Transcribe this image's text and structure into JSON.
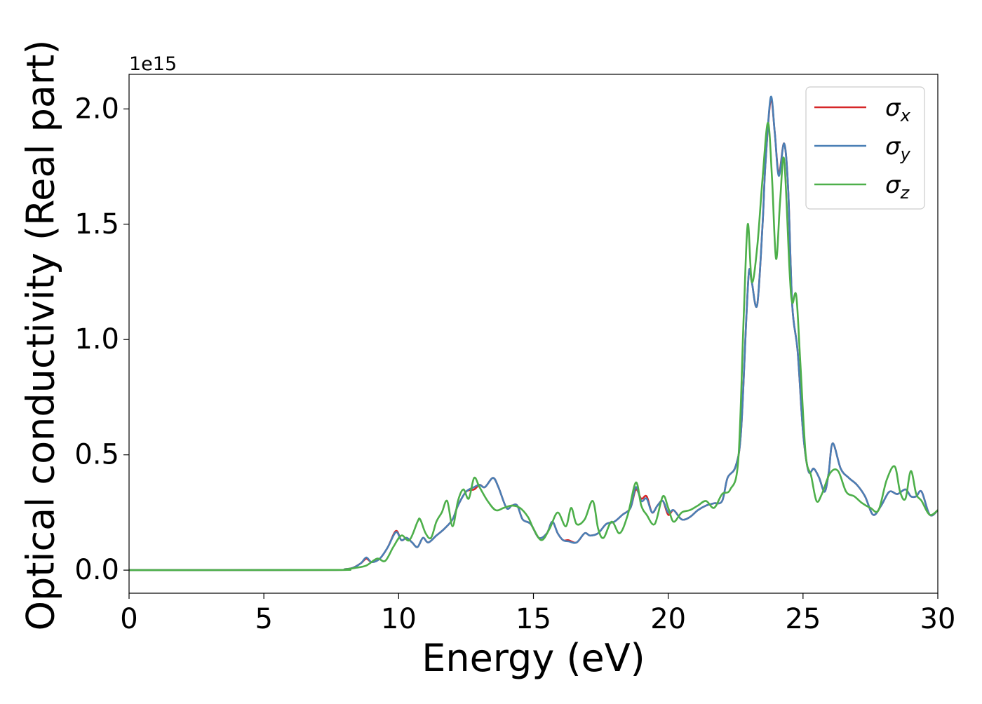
{
  "chart_data": {
    "type": "line",
    "title": "",
    "xlabel": "Energy (eV)",
    "ylabel": "Optical conductivity (Real part)",
    "y_offset_text": "1e15",
    "xlim": [
      0,
      30
    ],
    "ylim": [
      -0.1,
      2.15
    ],
    "x_ticks": [
      0,
      5,
      10,
      15,
      20,
      25,
      30
    ],
    "x_tick_labels": [
      "0",
      "5",
      "10",
      "15",
      "20",
      "25",
      "30"
    ],
    "y_ticks": [
      0.0,
      0.5,
      1.0,
      1.5,
      2.0
    ],
    "y_tick_labels": [
      "0.0",
      "0.5",
      "1.0",
      "1.5",
      "2.0"
    ],
    "grid": false,
    "legend_position": "top-right",
    "series": [
      {
        "name": "σx",
        "legend_base": "σ",
        "legend_sub": "x",
        "color": "#d62728",
        "x": [
          0,
          7.5,
          8,
          8.3,
          8.6,
          8.8,
          9.0,
          9.3,
          9.6,
          9.9,
          10.1,
          10.3,
          10.5,
          10.7,
          10.9,
          11.1,
          11.4,
          11.7,
          12.0,
          12.2,
          12.5,
          12.8,
          13.0,
          13.2,
          13.5,
          13.7,
          14.0,
          14.2,
          14.4,
          14.6,
          14.9,
          15.2,
          15.5,
          15.7,
          15.9,
          16.1,
          16.3,
          16.6,
          16.9,
          17.1,
          17.4,
          17.7,
          18.0,
          18.3,
          18.6,
          18.8,
          19.0,
          19.2,
          19.4,
          19.6,
          19.8,
          20.0,
          20.2,
          20.5,
          20.8,
          21.1,
          21.4,
          21.7,
          22.0,
          22.2,
          22.5,
          22.7,
          22.9,
          23.0,
          23.1,
          23.3,
          23.5,
          23.6,
          23.8,
          23.95,
          24.1,
          24.3,
          24.45,
          24.6,
          24.8,
          25.0,
          25.2,
          25.4,
          25.6,
          25.8,
          25.95,
          26.1,
          26.4,
          26.7,
          27.0,
          27.3,
          27.6,
          27.9,
          28.2,
          28.5,
          28.8,
          29.0,
          29.2,
          29.4,
          29.7,
          30.0
        ],
        "values": [
          0,
          0.001,
          0.004,
          0.01,
          0.03,
          0.05,
          0.035,
          0.05,
          0.1,
          0.17,
          0.13,
          0.14,
          0.12,
          0.1,
          0.14,
          0.12,
          0.15,
          0.18,
          0.22,
          0.28,
          0.34,
          0.35,
          0.37,
          0.36,
          0.4,
          0.36,
          0.27,
          0.28,
          0.28,
          0.22,
          0.2,
          0.14,
          0.16,
          0.21,
          0.16,
          0.13,
          0.13,
          0.12,
          0.16,
          0.15,
          0.16,
          0.2,
          0.21,
          0.24,
          0.27,
          0.35,
          0.31,
          0.32,
          0.25,
          0.28,
          0.3,
          0.24,
          0.26,
          0.22,
          0.23,
          0.26,
          0.28,
          0.29,
          0.3,
          0.4,
          0.45,
          0.6,
          1.1,
          1.3,
          1.25,
          1.15,
          1.5,
          1.75,
          2.04,
          1.9,
          1.72,
          1.85,
          1.65,
          1.15,
          0.95,
          0.6,
          0.43,
          0.44,
          0.4,
          0.34,
          0.42,
          0.55,
          0.44,
          0.4,
          0.37,
          0.32,
          0.24,
          0.28,
          0.34,
          0.33,
          0.35,
          0.32,
          0.32,
          0.34,
          0.24,
          0.26
        ]
      },
      {
        "name": "σy",
        "legend_base": "σ",
        "legend_sub": "y",
        "color": "#4a7fb5",
        "x": [
          0,
          7.5,
          8,
          8.3,
          8.6,
          8.8,
          9.0,
          9.3,
          9.6,
          9.9,
          10.1,
          10.3,
          10.5,
          10.7,
          10.9,
          11.1,
          11.4,
          11.7,
          12.0,
          12.2,
          12.5,
          12.8,
          13.0,
          13.2,
          13.5,
          13.7,
          14.0,
          14.2,
          14.4,
          14.6,
          14.9,
          15.2,
          15.5,
          15.7,
          15.9,
          16.1,
          16.3,
          16.6,
          16.9,
          17.1,
          17.4,
          17.7,
          18.0,
          18.3,
          18.6,
          18.8,
          19.0,
          19.2,
          19.4,
          19.6,
          19.8,
          20.0,
          20.2,
          20.5,
          20.8,
          21.1,
          21.4,
          21.7,
          22.0,
          22.2,
          22.5,
          22.7,
          22.9,
          23.0,
          23.1,
          23.3,
          23.5,
          23.6,
          23.8,
          23.95,
          24.1,
          24.3,
          24.45,
          24.6,
          24.8,
          25.0,
          25.2,
          25.4,
          25.6,
          25.8,
          25.95,
          26.1,
          26.4,
          26.7,
          27.0,
          27.3,
          27.6,
          27.9,
          28.2,
          28.5,
          28.8,
          29.0,
          29.2,
          29.4,
          29.7,
          30.0
        ],
        "values": [
          0,
          0.001,
          0.004,
          0.01,
          0.03,
          0.055,
          0.035,
          0.05,
          0.1,
          0.165,
          0.13,
          0.14,
          0.12,
          0.1,
          0.14,
          0.12,
          0.15,
          0.18,
          0.22,
          0.28,
          0.34,
          0.36,
          0.37,
          0.36,
          0.4,
          0.36,
          0.27,
          0.28,
          0.28,
          0.22,
          0.2,
          0.14,
          0.16,
          0.21,
          0.16,
          0.13,
          0.125,
          0.12,
          0.16,
          0.15,
          0.16,
          0.2,
          0.21,
          0.24,
          0.27,
          0.36,
          0.3,
          0.31,
          0.25,
          0.28,
          0.3,
          0.25,
          0.26,
          0.22,
          0.23,
          0.26,
          0.28,
          0.29,
          0.3,
          0.4,
          0.45,
          0.6,
          1.1,
          1.3,
          1.25,
          1.15,
          1.5,
          1.75,
          2.05,
          1.9,
          1.71,
          1.85,
          1.65,
          1.15,
          0.95,
          0.6,
          0.43,
          0.44,
          0.4,
          0.34,
          0.42,
          0.55,
          0.44,
          0.4,
          0.37,
          0.32,
          0.24,
          0.28,
          0.34,
          0.33,
          0.35,
          0.32,
          0.32,
          0.34,
          0.24,
          0.26
        ]
      },
      {
        "name": "σz",
        "legend_base": "σ",
        "legend_sub": "z",
        "color": "#4daf4a",
        "x": [
          0,
          7.5,
          8,
          8.4,
          8.8,
          9.2,
          9.5,
          9.8,
          10.1,
          10.4,
          10.7,
          10.8,
          11.0,
          11.2,
          11.4,
          11.6,
          11.8,
          12.0,
          12.2,
          12.4,
          12.6,
          12.8,
          13.0,
          13.3,
          13.6,
          13.9,
          14.2,
          14.5,
          14.8,
          15.0,
          15.3,
          15.6,
          15.9,
          16.2,
          16.4,
          16.6,
          16.9,
          17.2,
          17.4,
          17.6,
          17.9,
          18.2,
          18.5,
          18.8,
          19.0,
          19.2,
          19.5,
          19.8,
          20.0,
          20.2,
          20.5,
          20.8,
          21.1,
          21.4,
          21.7,
          22.0,
          22.3,
          22.6,
          22.8,
          22.95,
          23.1,
          23.3,
          23.5,
          23.7,
          23.85,
          24.0,
          24.15,
          24.3,
          24.5,
          24.6,
          24.75,
          24.9,
          25.1,
          25.3,
          25.5,
          25.7,
          26.0,
          26.3,
          26.6,
          26.9,
          27.2,
          27.5,
          27.8,
          28.1,
          28.4,
          28.6,
          28.8,
          29.0,
          29.2,
          29.4,
          29.7,
          30.0
        ],
        "values": [
          0,
          0.001,
          0.003,
          0.01,
          0.02,
          0.05,
          0.04,
          0.1,
          0.15,
          0.13,
          0.21,
          0.22,
          0.16,
          0.14,
          0.21,
          0.25,
          0.3,
          0.19,
          0.3,
          0.35,
          0.31,
          0.4,
          0.36,
          0.3,
          0.26,
          0.27,
          0.28,
          0.27,
          0.23,
          0.18,
          0.13,
          0.18,
          0.25,
          0.19,
          0.27,
          0.2,
          0.22,
          0.3,
          0.18,
          0.14,
          0.21,
          0.16,
          0.24,
          0.38,
          0.28,
          0.24,
          0.2,
          0.32,
          0.27,
          0.21,
          0.25,
          0.26,
          0.28,
          0.3,
          0.27,
          0.33,
          0.35,
          0.48,
          1.1,
          1.5,
          1.25,
          1.4,
          1.7,
          1.94,
          1.7,
          1.35,
          1.6,
          1.78,
          1.3,
          1.16,
          1.19,
          0.9,
          0.5,
          0.41,
          0.3,
          0.33,
          0.42,
          0.43,
          0.34,
          0.32,
          0.29,
          0.27,
          0.26,
          0.39,
          0.45,
          0.34,
          0.31,
          0.43,
          0.33,
          0.3,
          0.24,
          0.26
        ]
      }
    ]
  }
}
